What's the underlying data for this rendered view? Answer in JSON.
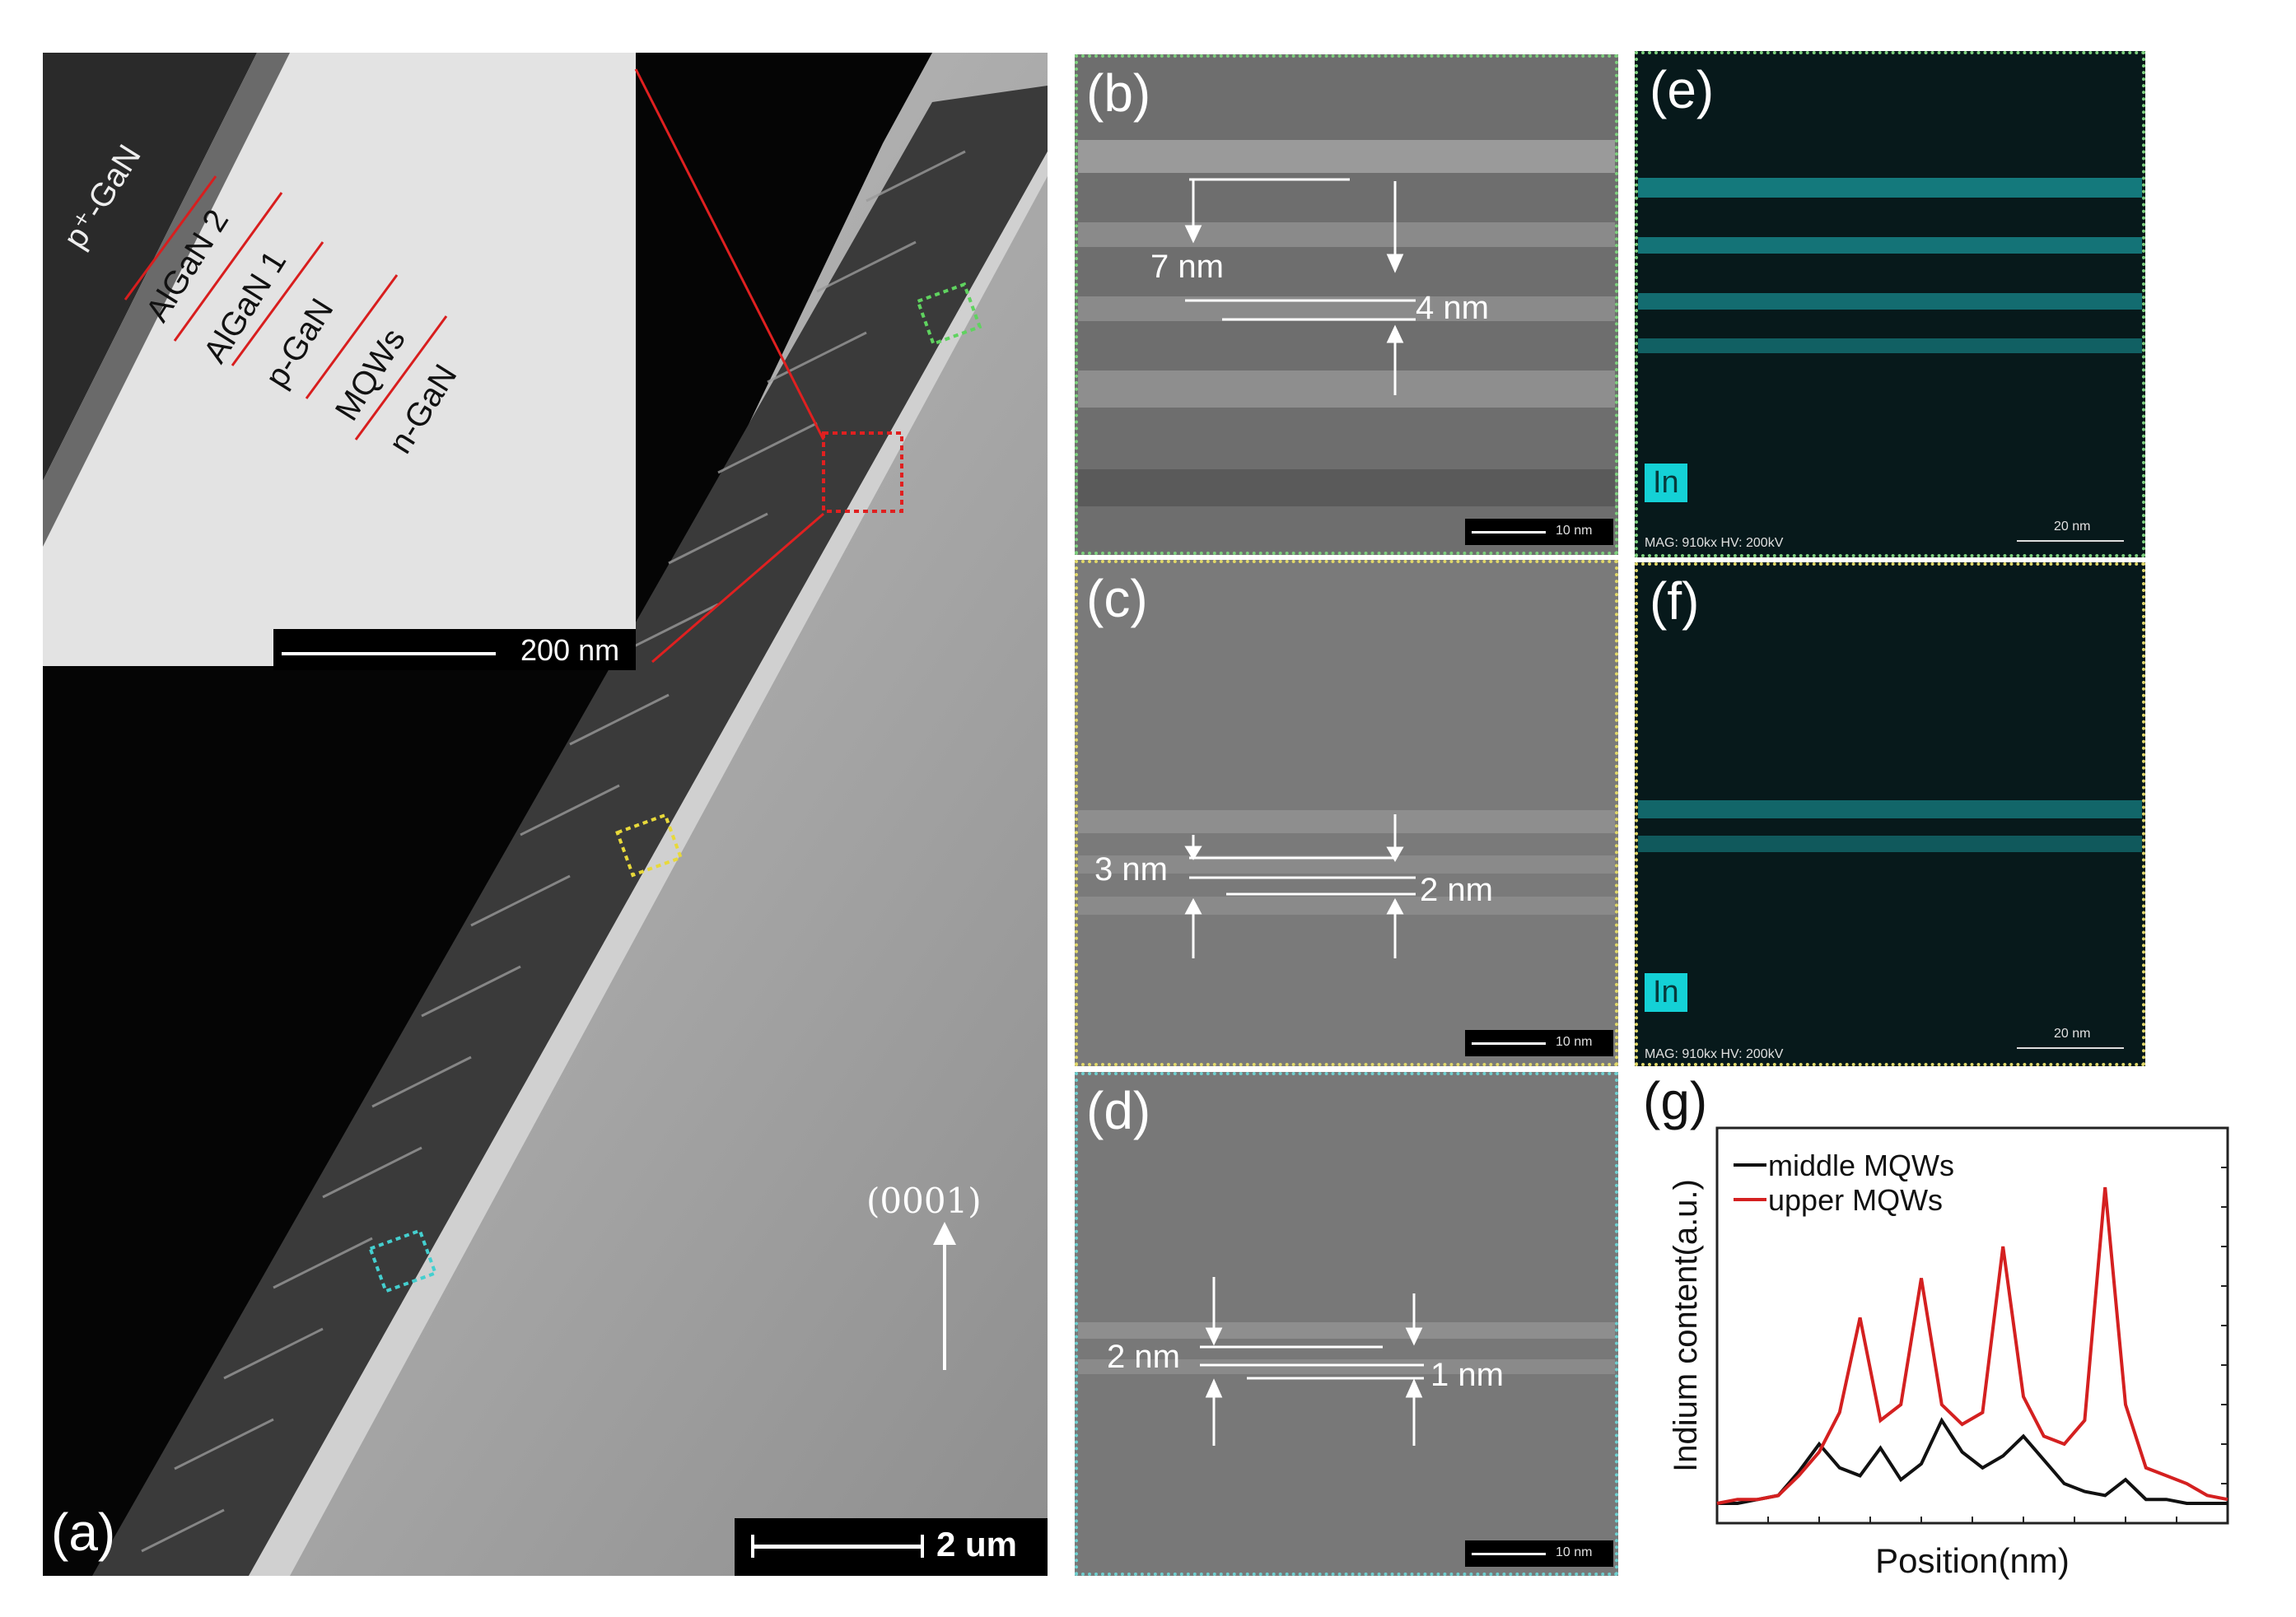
{
  "panel_a": {
    "label": "(a)",
    "scale_bar": "2 um",
    "direction": "(0001)",
    "inset": {
      "scale_bar": "200 nm",
      "layers": [
        "p⁺-GaN",
        "AlGaN 2",
        "AlGaN 1",
        "p-GaN",
        "MQWs",
        "n-GaN"
      ]
    },
    "box_colors": {
      "green": "#5fd35f",
      "red": "#e02020",
      "yellow": "#e8d93a",
      "cyan": "#44cfcf"
    }
  },
  "panel_b": {
    "label": "(b)",
    "dim1": "7 nm",
    "dim2": "4 nm",
    "scale": "10 nm"
  },
  "panel_c": {
    "label": "(c)",
    "dim1": "3 nm",
    "dim2": "2 nm",
    "scale": "10 nm"
  },
  "panel_d": {
    "label": "(d)",
    "dim1": "2 nm",
    "dim2": "1 nm",
    "scale": "10 nm"
  },
  "panel_e": {
    "label": "(e)",
    "element": "In",
    "scale": "20 nm",
    "info": "MAG: 910kx  HV: 200kV"
  },
  "panel_f": {
    "label": "(f)",
    "element": "In",
    "scale": "20 nm",
    "info": "MAG: 910kx  HV: 200kV"
  },
  "panel_g": {
    "label": "(g)"
  },
  "chart_data": {
    "type": "line",
    "xlabel": "Position(nm)",
    "ylabel": "Indium content(a.u.)",
    "legend_position": "top-left",
    "series": [
      {
        "name": "middle MQWs",
        "color": "#111111",
        "x": [
          0,
          4,
          8,
          12,
          16,
          20,
          24,
          28,
          32,
          36,
          40,
          44,
          48,
          52,
          56,
          60,
          64,
          68,
          72,
          76,
          80,
          84,
          88,
          92,
          96,
          100
        ],
        "values": [
          0.05,
          0.05,
          0.06,
          0.07,
          0.13,
          0.2,
          0.14,
          0.12,
          0.19,
          0.11,
          0.15,
          0.26,
          0.18,
          0.14,
          0.17,
          0.22,
          0.16,
          0.1,
          0.08,
          0.07,
          0.11,
          0.06,
          0.06,
          0.05,
          0.05,
          0.05
        ]
      },
      {
        "name": "upper MQWs",
        "color": "#d42020",
        "x": [
          0,
          4,
          8,
          12,
          16,
          20,
          24,
          28,
          32,
          36,
          40,
          44,
          48,
          52,
          56,
          60,
          64,
          68,
          72,
          76,
          80,
          84,
          88,
          92,
          96,
          100
        ],
        "values": [
          0.05,
          0.06,
          0.06,
          0.07,
          0.12,
          0.18,
          0.28,
          0.52,
          0.26,
          0.3,
          0.62,
          0.3,
          0.25,
          0.28,
          0.7,
          0.32,
          0.22,
          0.2,
          0.26,
          0.85,
          0.3,
          0.14,
          0.12,
          0.1,
          0.07,
          0.06
        ]
      }
    ],
    "ylim": [
      0,
      1
    ]
  }
}
